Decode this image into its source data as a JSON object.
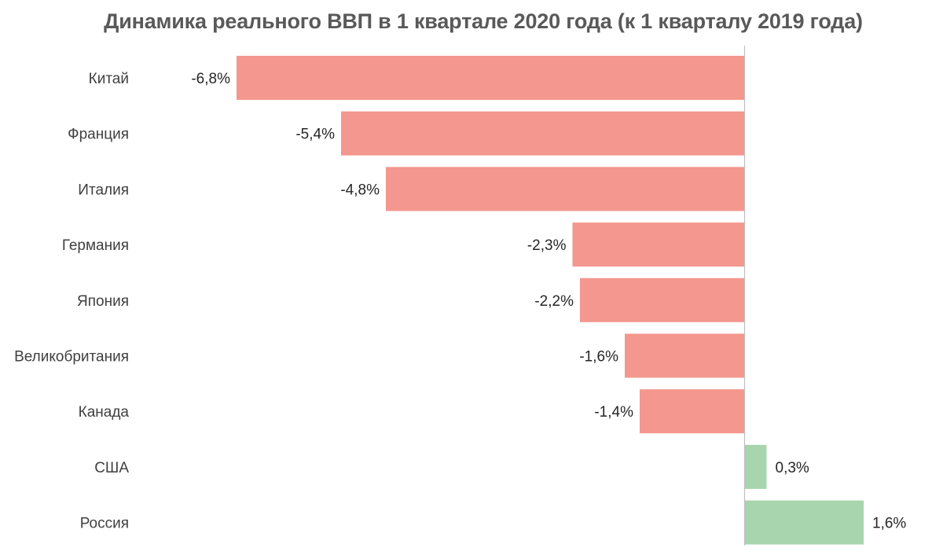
{
  "chart_data": {
    "type": "bar",
    "orientation": "horizontal",
    "title": "Динамика реального ВВП в 1 квартале 2020 года (к 1 кварталу 2019 года)",
    "categories": [
      "Китай",
      "Франция",
      "Италия",
      "Германия",
      "Япония",
      "Великобритания",
      "Канада",
      "США",
      "Россия"
    ],
    "values": [
      -6.8,
      -5.4,
      -4.8,
      -2.3,
      -2.2,
      -1.6,
      -1.4,
      0.3,
      1.6
    ],
    "value_labels": [
      "-6,8%",
      "-5,4%",
      "-4,8%",
      "-2,3%",
      "-2,2%",
      "-1,6%",
      "-1,4%",
      "0,3%",
      "1,6%"
    ],
    "unit": "%",
    "xlim": [
      -6.8,
      2.2
    ],
    "grid": false,
    "legend": "none",
    "colors": {
      "negative": "#f4978e",
      "positive": "#a8d5ad",
      "axis": "#bfbfbf"
    }
  }
}
